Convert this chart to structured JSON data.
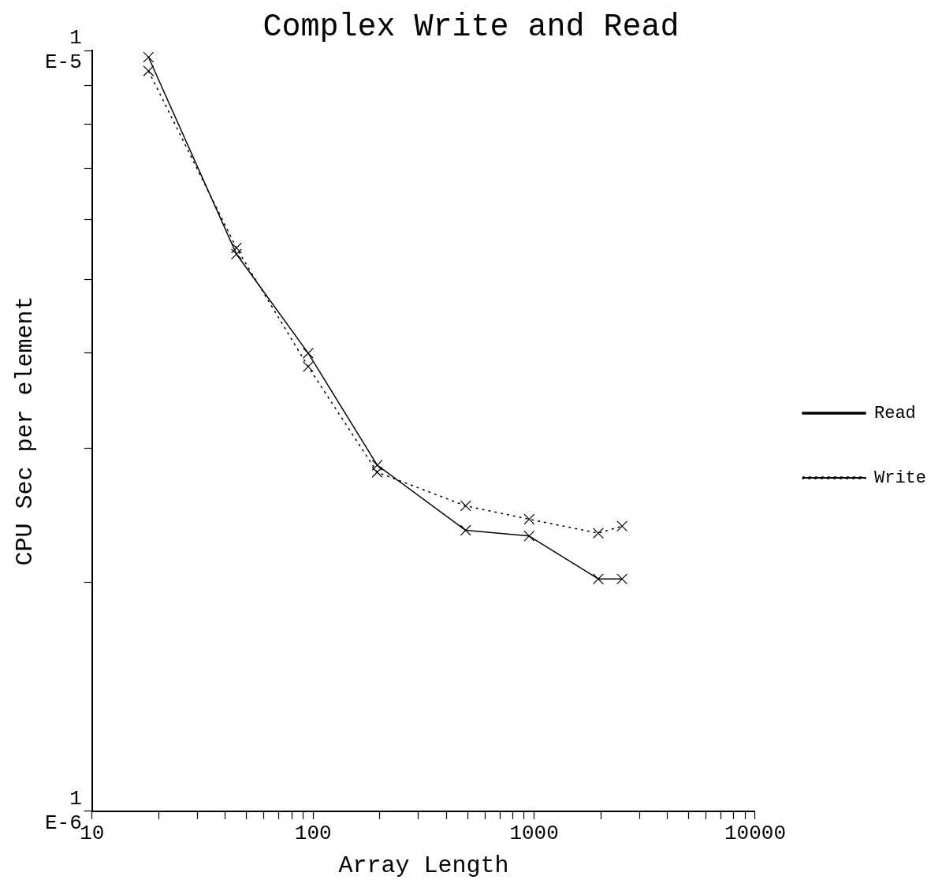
{
  "chart_data": {
    "type": "line",
    "title": "Complex Write and Read",
    "xlabel": "Array Length",
    "ylabel": "CPU Sec per element",
    "log": "xy",
    "grid": false,
    "legend": "right",
    "marker": "cross",
    "xlim": [
      10,
      10000
    ],
    "ylim": [
      1e-06,
      1e-05
    ],
    "xticks": [
      10,
      {
        "value": 20,
        "label": null
      },
      {
        "value": 30,
        "label": null
      },
      {
        "value": 40,
        "label": null
      },
      {
        "value": 50,
        "label": null
      },
      {
        "value": 60,
        "label": null
      },
      {
        "value": 70,
        "label": null
      },
      {
        "value": 80,
        "label": null
      },
      {
        "value": 90,
        "label": null
      },
      100,
      {
        "value": 200,
        "label": null
      },
      {
        "value": 300,
        "label": null
      },
      {
        "value": 400,
        "label": null
      },
      {
        "value": 500,
        "label": null
      },
      {
        "value": 600,
        "label": null
      },
      {
        "value": 700,
        "label": null
      },
      {
        "value": 800,
        "label": null
      },
      {
        "value": 900,
        "label": null
      },
      1000,
      {
        "value": 2000,
        "label": null
      },
      {
        "value": 3000,
        "label": null
      },
      {
        "value": 4000,
        "label": null
      },
      {
        "value": 5000,
        "label": null
      },
      {
        "value": 6000,
        "label": null
      },
      {
        "value": 7000,
        "label": null
      },
      {
        "value": 8000,
        "label": null
      },
      {
        "value": 9000,
        "label": null
      },
      10000
    ],
    "yticks": [
      {
        "value": 1e-06,
        "label": "1E-6"
      },
      {
        "value": 2e-06,
        "label": null
      },
      {
        "value": 3e-06,
        "label": null
      },
      {
        "value": 4e-06,
        "label": null
      },
      {
        "value": 5e-06,
        "label": null
      },
      {
        "value": 6e-06,
        "label": null
      },
      {
        "value": 7e-06,
        "label": null
      },
      {
        "value": 8e-06,
        "label": null
      },
      {
        "value": 9e-06,
        "label": null
      },
      {
        "value": 1e-05,
        "label": "1E-5"
      }
    ],
    "x": [
      18,
      45,
      95,
      195,
      490,
      950,
      1950,
      2500
    ],
    "series": [
      {
        "name": "Read",
        "color": "#000000",
        "line_style": "solid",
        "values": [
          9.8e-06,
          5.4e-06,
          4e-06,
          2.85e-06,
          2.34e-06,
          2.3e-06,
          2.02e-06,
          2.02e-06
        ]
      },
      {
        "name": "Write",
        "color": "#000000",
        "line_style": "dotted",
        "values": [
          9.4e-06,
          5.5e-06,
          3.84e-06,
          2.79e-06,
          2.52e-06,
          2.42e-06,
          2.32e-06,
          2.37e-06
        ]
      }
    ]
  }
}
